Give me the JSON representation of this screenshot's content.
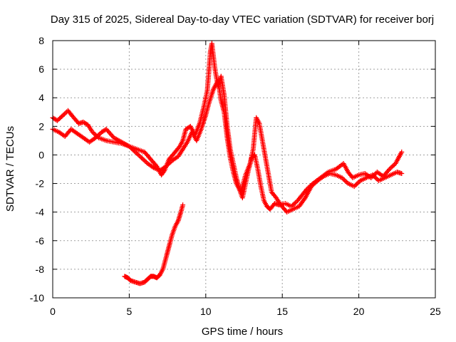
{
  "chart_data": {
    "type": "scatter",
    "title": "Day 315 of 2025, Sidereal Day-to-day VTEC variation (SDTVAR) for receiver borj",
    "xlabel": "GPS time / hours",
    "ylabel": "SDTVAR / TECUs",
    "xlim": [
      0,
      25
    ],
    "ylim": [
      -10,
      8
    ],
    "xticks": [
      0,
      5,
      10,
      15,
      20,
      25
    ],
    "yticks": [
      -10,
      -8,
      -6,
      -4,
      -2,
      0,
      2,
      4,
      6,
      8
    ],
    "xtick_labels": [
      "0",
      "5",
      "10",
      "15",
      "20",
      "25"
    ],
    "ytick_labels": [
      "-10",
      "-8",
      "-6",
      "-4",
      "-2",
      "0",
      "2",
      "4",
      "6",
      "8"
    ],
    "grid": true,
    "marker": "+",
    "series": [
      {
        "name": "main-band-a",
        "color": "#ff0000",
        "points": [
          [
            0.0,
            2.6
          ],
          [
            0.3,
            2.4
          ],
          [
            0.6,
            2.7
          ],
          [
            1.0,
            3.1
          ],
          [
            1.3,
            2.7
          ],
          [
            1.7,
            2.2
          ],
          [
            2.0,
            2.3
          ],
          [
            2.3,
            2.1
          ],
          [
            2.6,
            1.6
          ],
          [
            3.0,
            1.2
          ],
          [
            3.5,
            1.0
          ],
          [
            4.0,
            0.9
          ],
          [
            4.5,
            0.8
          ],
          [
            5.0,
            0.6
          ],
          [
            5.5,
            0.4
          ],
          [
            6.0,
            0.2
          ],
          [
            6.4,
            -0.3
          ],
          [
            6.8,
            -0.8
          ],
          [
            7.1,
            -1.4
          ],
          [
            7.3,
            -1.1
          ],
          [
            7.6,
            -0.3
          ],
          [
            8.0,
            0.2
          ],
          [
            8.3,
            0.6
          ],
          [
            8.5,
            1.0
          ],
          [
            8.7,
            1.8
          ],
          [
            9.0,
            2.0
          ],
          [
            9.3,
            1.4
          ],
          [
            9.6,
            2.2
          ],
          [
            9.9,
            3.5
          ],
          [
            10.1,
            4.5
          ],
          [
            10.2,
            5.8
          ],
          [
            10.3,
            7.2
          ],
          [
            10.4,
            7.8
          ],
          [
            10.6,
            6.0
          ],
          [
            10.8,
            4.8
          ],
          [
            11.0,
            5.5
          ],
          [
            11.2,
            4.2
          ],
          [
            11.4,
            2.0
          ],
          [
            11.6,
            0.4
          ],
          [
            11.8,
            -0.6
          ],
          [
            12.0,
            -1.6
          ],
          [
            12.2,
            -2.4
          ],
          [
            12.4,
            -3.0
          ],
          [
            12.6,
            -2.0
          ],
          [
            12.8,
            -1.0
          ],
          [
            13.0,
            -0.2
          ],
          [
            13.2,
            0.0
          ],
          [
            13.4,
            -1.0
          ],
          [
            13.6,
            -2.2
          ],
          [
            13.8,
            -3.2
          ],
          [
            14.0,
            -3.6
          ],
          [
            14.2,
            -3.8
          ],
          [
            14.5,
            -3.4
          ],
          [
            14.8,
            -3.5
          ],
          [
            15.2,
            -3.4
          ],
          [
            15.6,
            -3.6
          ],
          [
            16.0,
            -3.2
          ],
          [
            16.3,
            -2.8
          ],
          [
            16.6,
            -2.4
          ],
          [
            17.0,
            -2.0
          ],
          [
            17.5,
            -1.6
          ],
          [
            18.0,
            -1.2
          ],
          [
            18.5,
            -1.0
          ],
          [
            19.0,
            -0.6
          ],
          [
            19.3,
            -1.2
          ],
          [
            19.6,
            -1.6
          ],
          [
            20.0,
            -1.4
          ],
          [
            20.4,
            -1.3
          ],
          [
            20.8,
            -1.6
          ],
          [
            21.2,
            -1.2
          ],
          [
            21.6,
            -1.5
          ],
          [
            22.0,
            -1.0
          ],
          [
            22.4,
            -0.6
          ],
          [
            22.8,
            0.2
          ]
        ]
      },
      {
        "name": "main-band-b",
        "color": "#ff0000",
        "points": [
          [
            0.0,
            1.8
          ],
          [
            0.4,
            1.6
          ],
          [
            0.8,
            1.3
          ],
          [
            1.2,
            1.8
          ],
          [
            1.6,
            1.5
          ],
          [
            2.0,
            1.2
          ],
          [
            2.4,
            0.9
          ],
          [
            2.8,
            1.2
          ],
          [
            3.2,
            1.6
          ],
          [
            3.5,
            1.8
          ],
          [
            4.0,
            1.2
          ],
          [
            4.5,
            0.9
          ],
          [
            5.0,
            0.6
          ],
          [
            5.4,
            0.2
          ],
          [
            5.8,
            -0.2
          ],
          [
            6.2,
            -0.6
          ],
          [
            6.6,
            -0.9
          ],
          [
            7.0,
            -1.1
          ],
          [
            7.4,
            -0.8
          ],
          [
            7.8,
            -0.4
          ],
          [
            8.2,
            -0.1
          ],
          [
            8.5,
            0.4
          ],
          [
            8.8,
            0.9
          ],
          [
            9.1,
            1.6
          ],
          [
            9.4,
            1.0
          ],
          [
            9.7,
            1.8
          ],
          [
            10.0,
            2.8
          ],
          [
            10.2,
            3.6
          ],
          [
            10.5,
            4.6
          ],
          [
            10.8,
            5.2
          ],
          [
            11.0,
            3.8
          ],
          [
            11.2,
            3.0
          ],
          [
            11.4,
            1.2
          ],
          [
            11.6,
            -0.2
          ],
          [
            11.8,
            -1.2
          ],
          [
            12.0,
            -2.0
          ],
          [
            12.3,
            -2.6
          ],
          [
            12.6,
            -1.4
          ],
          [
            12.9,
            -0.6
          ],
          [
            13.1,
            0.4
          ],
          [
            13.3,
            2.6
          ],
          [
            13.5,
            2.2
          ],
          [
            13.7,
            1.0
          ],
          [
            13.9,
            -0.2
          ],
          [
            14.1,
            -1.4
          ],
          [
            14.3,
            -2.6
          ],
          [
            14.6,
            -3.0
          ],
          [
            14.9,
            -3.5
          ],
          [
            15.3,
            -4.0
          ],
          [
            15.7,
            -3.8
          ],
          [
            16.1,
            -3.6
          ],
          [
            16.5,
            -3.0
          ],
          [
            16.9,
            -2.2
          ],
          [
            17.3,
            -1.8
          ],
          [
            17.7,
            -1.5
          ],
          [
            18.1,
            -1.3
          ],
          [
            18.5,
            -1.4
          ],
          [
            18.9,
            -1.6
          ],
          [
            19.3,
            -2.0
          ],
          [
            19.7,
            -2.2
          ],
          [
            20.1,
            -1.8
          ],
          [
            20.5,
            -1.6
          ],
          [
            20.9,
            -1.4
          ],
          [
            21.3,
            -1.8
          ],
          [
            21.7,
            -1.6
          ],
          [
            22.1,
            -1.4
          ],
          [
            22.5,
            -1.2
          ],
          [
            22.8,
            -1.3
          ]
        ]
      },
      {
        "name": "low-arc",
        "color": "#ff0000",
        "points": [
          [
            4.7,
            -8.5
          ],
          [
            4.9,
            -8.6
          ],
          [
            5.1,
            -8.8
          ],
          [
            5.4,
            -8.9
          ],
          [
            5.7,
            -9.0
          ],
          [
            6.0,
            -8.9
          ],
          [
            6.2,
            -8.7
          ],
          [
            6.4,
            -8.5
          ],
          [
            6.6,
            -8.5
          ],
          [
            6.8,
            -8.6
          ],
          [
            7.0,
            -8.4
          ],
          [
            7.2,
            -8.0
          ],
          [
            7.4,
            -7.2
          ],
          [
            7.6,
            -6.4
          ],
          [
            7.8,
            -5.6
          ],
          [
            8.0,
            -5.0
          ],
          [
            8.2,
            -4.6
          ],
          [
            8.4,
            -3.9
          ],
          [
            8.5,
            -3.5
          ]
        ]
      }
    ]
  }
}
